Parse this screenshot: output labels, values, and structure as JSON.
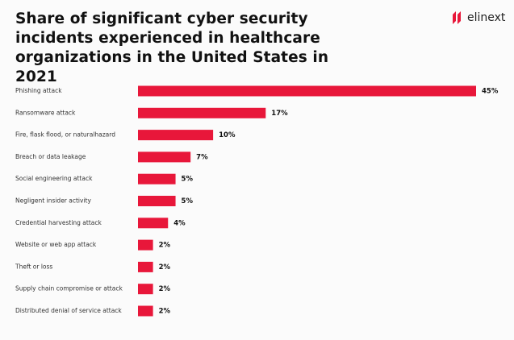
{
  "logo": "elinext",
  "chart_data": {
    "type": "bar",
    "orientation": "horizontal",
    "title": "Share of significant cyber security incidents experienced in healthcare organizations in the United States in 2021",
    "categories": [
      "Phishing attack",
      "Ransomware attack",
      "Fire, flask flood, or naturalhazard",
      "Breach or data leakage",
      "Social engineering attack",
      "Negligent insider activity",
      "Credential harvesting attack",
      "Website or web app attack",
      "Theft or loss",
      "Supply chain compromise or attack",
      "Distributed denial of service attack"
    ],
    "values": [
      45,
      17,
      10,
      7,
      5,
      5,
      4,
      2,
      2,
      2,
      2
    ],
    "value_labels": [
      "45%",
      "17%",
      "10%",
      "7%",
      "5%",
      "5%",
      "4%",
      "2%",
      "2%",
      "2%",
      "2%"
    ],
    "color": "#e8173a"
  }
}
